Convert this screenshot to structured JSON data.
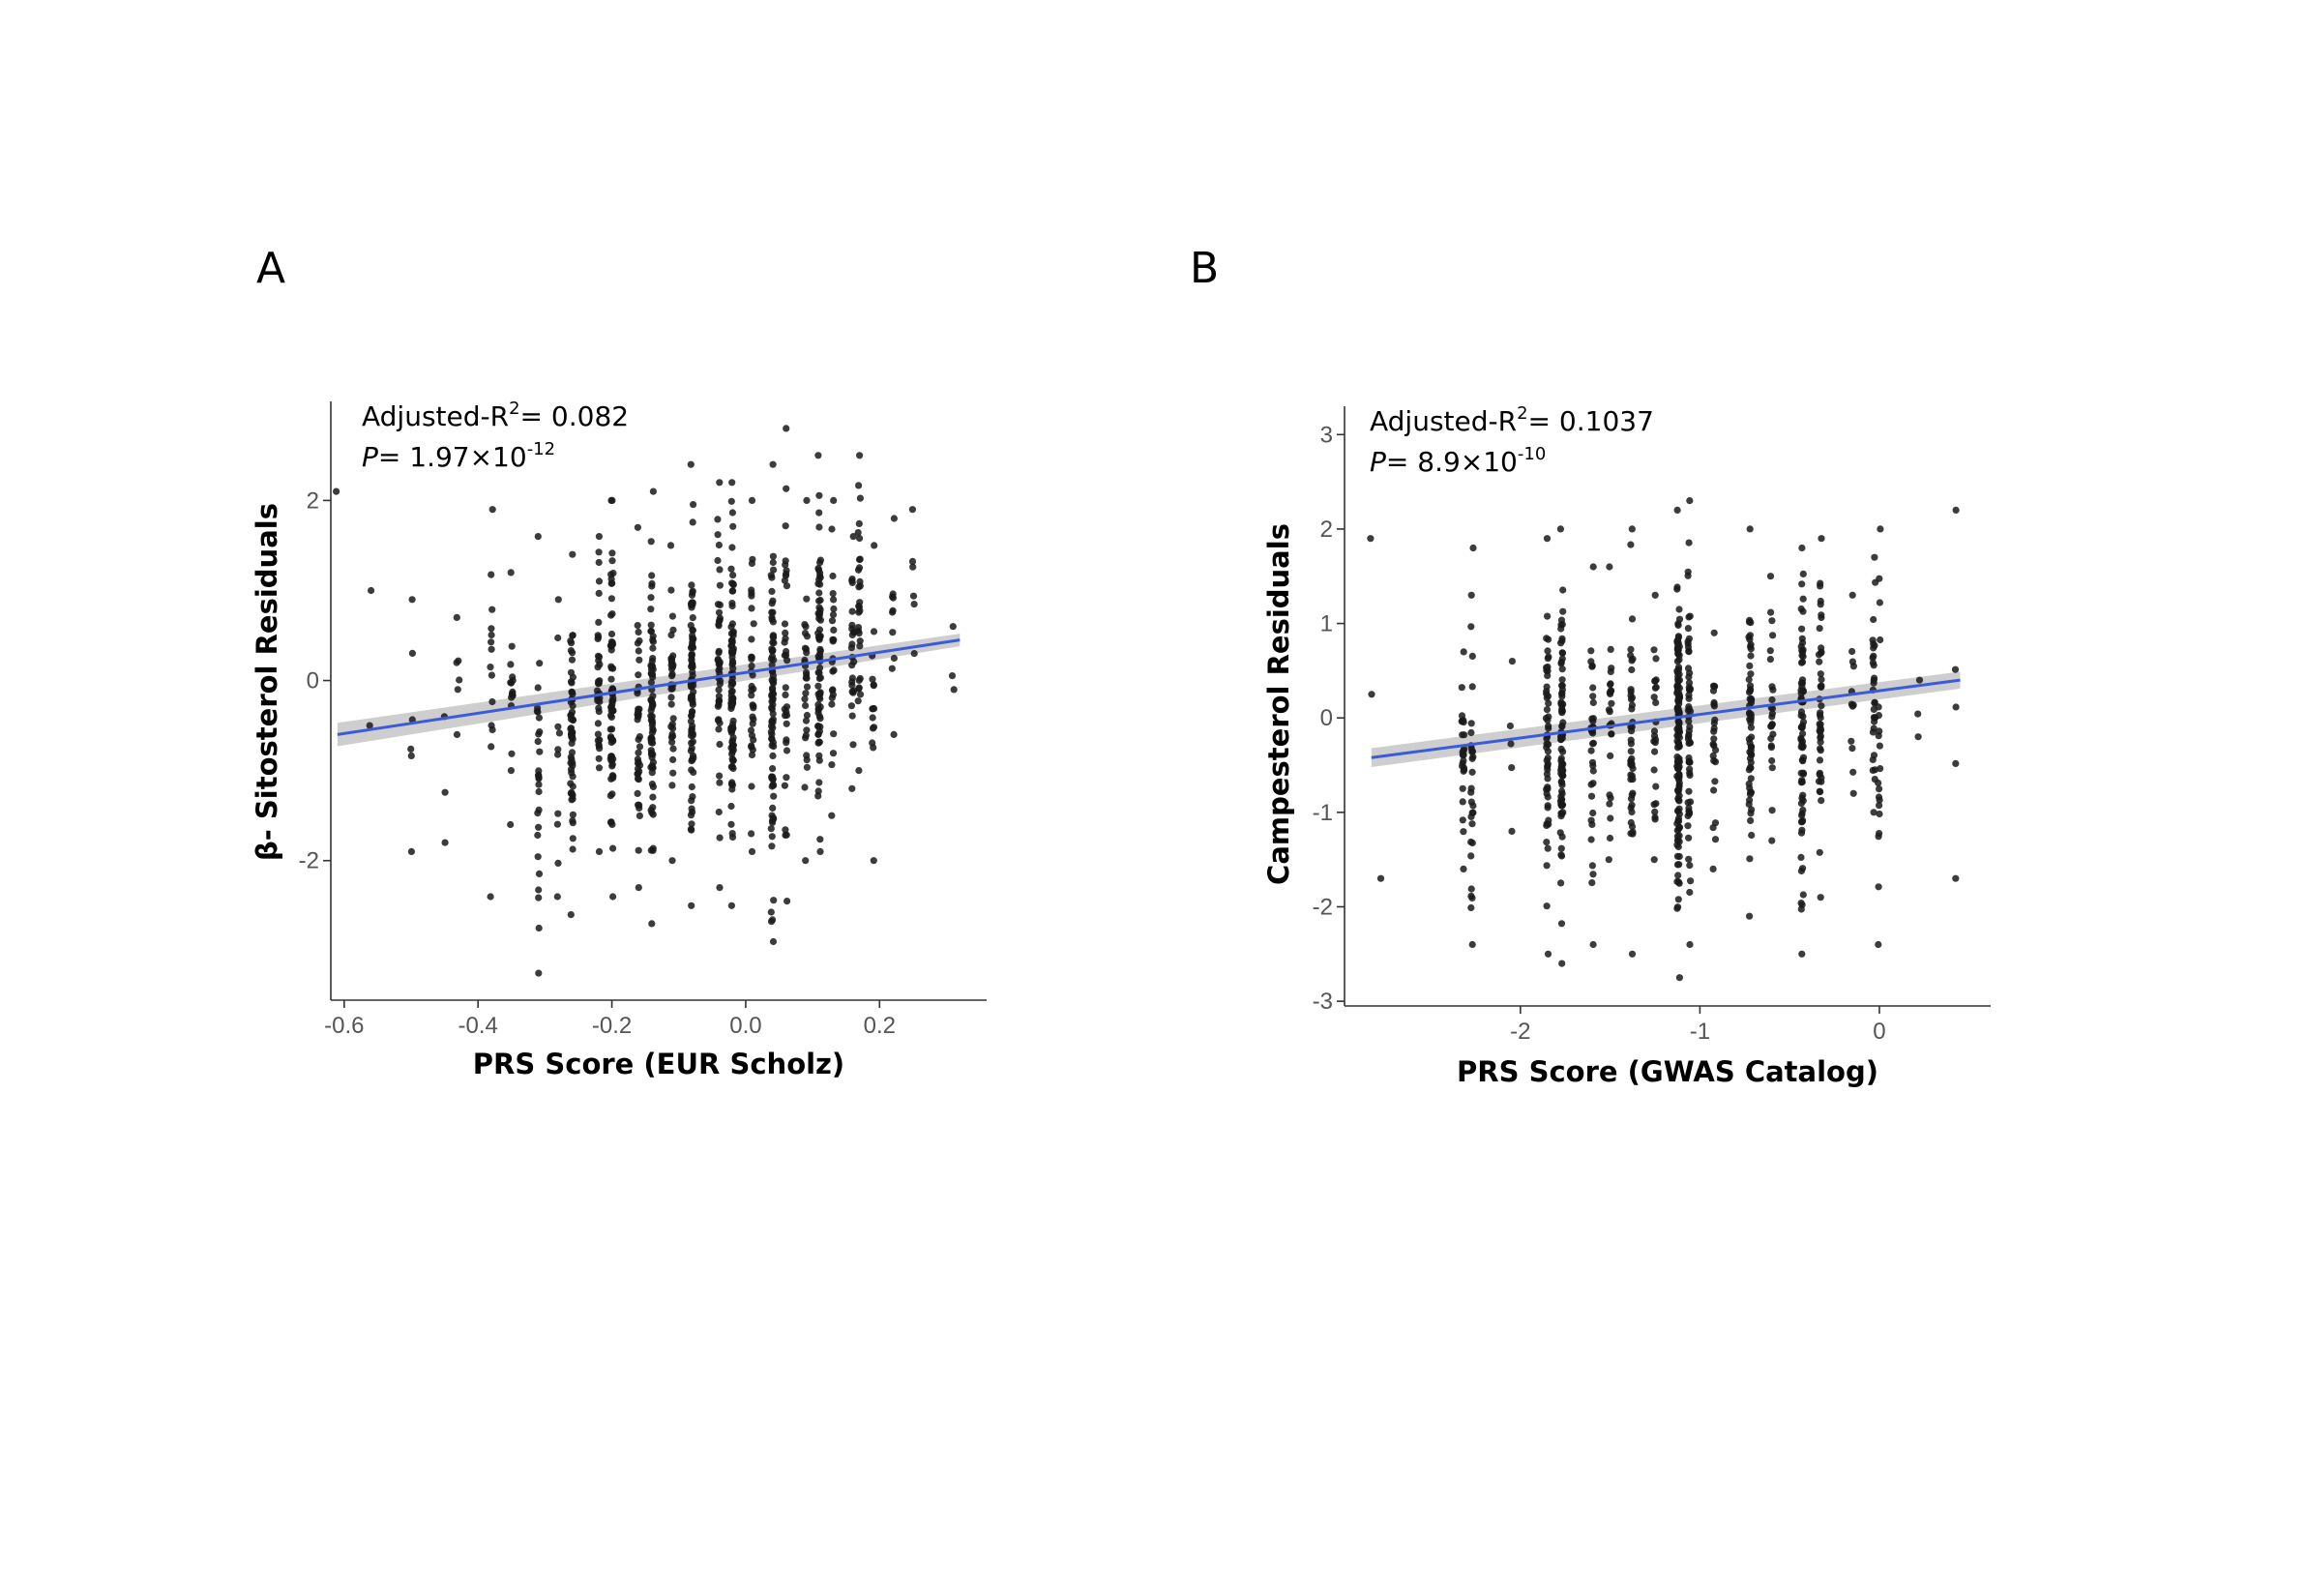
{
  "chart_data": [
    {
      "panel": "A",
      "type": "scatter",
      "xlabel": "PRS Score (EUR Scholz)",
      "ylabel": "β- Sitosterol Residuals",
      "xlim": [
        -0.62,
        0.36
      ],
      "ylim": [
        -3.55,
        3.1
      ],
      "xticks": [
        -0.6,
        -0.4,
        -0.2,
        0.0,
        0.2
      ],
      "xtick_labels": [
        "-0.6",
        "-0.4",
        "-0.2",
        "0.0",
        "0.2"
      ],
      "yticks": [
        -2,
        0,
        2
      ],
      "ytick_labels": [
        "-2",
        "0",
        "2"
      ],
      "grid": false,
      "annotation": {
        "r2_prefix": "Adjusted-R",
        "r2_sup": "2",
        "r2_value": "= 0.082",
        "p_label": "P",
        "p_value": "= 1.97×10",
        "p_exp": "-12"
      },
      "fit": {
        "x": [
          -0.61,
          0.32
        ],
        "y": [
          -0.6,
          0.45
        ],
        "ci_halfwidth": [
          0.13,
          0.07
        ]
      },
      "point_color": "#1a1a1a",
      "line_color": "#3b5bdb",
      "band_color": "#bdbdbd",
      "strips": [
        {
          "x": -0.61,
          "n": 1,
          "lo": 2.1,
          "hi": 2.1
        },
        {
          "x": -0.56,
          "n": 2,
          "lo": -0.5,
          "hi": 1.0
        },
        {
          "x": -0.5,
          "n": 6,
          "lo": -1.9,
          "hi": 0.9
        },
        {
          "x": -0.45,
          "n": 3,
          "lo": -1.8,
          "hi": -0.4
        },
        {
          "x": -0.43,
          "n": 6,
          "lo": -0.6,
          "hi": 0.7
        },
        {
          "x": -0.38,
          "n": 14,
          "lo": -2.4,
          "hi": 1.9
        },
        {
          "x": -0.35,
          "n": 16,
          "lo": -1.6,
          "hi": 1.2
        },
        {
          "x": -0.31,
          "n": 28,
          "lo": -3.25,
          "hi": 1.6
        },
        {
          "x": -0.28,
          "n": 10,
          "lo": -2.4,
          "hi": 0.9
        },
        {
          "x": -0.26,
          "n": 60,
          "lo": -2.6,
          "hi": 1.4
        },
        {
          "x": -0.22,
          "n": 38,
          "lo": -1.9,
          "hi": 1.6
        },
        {
          "x": -0.2,
          "n": 70,
          "lo": -2.4,
          "hi": 2.0
        },
        {
          "x": -0.16,
          "n": 40,
          "lo": -2.3,
          "hi": 1.7
        },
        {
          "x": -0.14,
          "n": 75,
          "lo": -2.7,
          "hi": 2.1
        },
        {
          "x": -0.11,
          "n": 35,
          "lo": -2.0,
          "hi": 1.5
        },
        {
          "x": -0.08,
          "n": 90,
          "lo": -2.5,
          "hi": 2.4
        },
        {
          "x": -0.04,
          "n": 45,
          "lo": -2.3,
          "hi": 2.2
        },
        {
          "x": -0.02,
          "n": 95,
          "lo": -2.5,
          "hi": 2.2
        },
        {
          "x": 0.01,
          "n": 35,
          "lo": -1.9,
          "hi": 2.0
        },
        {
          "x": 0.04,
          "n": 85,
          "lo": -2.9,
          "hi": 2.4
        },
        {
          "x": 0.06,
          "n": 35,
          "lo": -2.45,
          "hi": 2.8
        },
        {
          "x": 0.09,
          "n": 30,
          "lo": -2.0,
          "hi": 2.0
        },
        {
          "x": 0.11,
          "n": 75,
          "lo": -1.9,
          "hi": 2.5
        },
        {
          "x": 0.13,
          "n": 25,
          "lo": -1.5,
          "hi": 2.0
        },
        {
          "x": 0.16,
          "n": 25,
          "lo": -1.2,
          "hi": 1.6
        },
        {
          "x": 0.17,
          "n": 30,
          "lo": -1.0,
          "hi": 2.5
        },
        {
          "x": 0.19,
          "n": 15,
          "lo": -2.0,
          "hi": 1.5
        },
        {
          "x": 0.22,
          "n": 10,
          "lo": -0.6,
          "hi": 1.8
        },
        {
          "x": 0.25,
          "n": 6,
          "lo": 0.3,
          "hi": 1.9
        },
        {
          "x": 0.31,
          "n": 3,
          "lo": -0.1,
          "hi": 0.6
        }
      ]
    },
    {
      "panel": "B",
      "type": "scatter",
      "xlabel": "PRS Score (GWAS Catalog)",
      "ylabel": "Campesterol Residuals",
      "xlim": [
        -2.98,
        0.62
      ],
      "ylim": [
        -3.05,
        3.3
      ],
      "xticks": [
        -2,
        -1,
        0
      ],
      "xtick_labels": [
        "-2",
        "-1",
        "0"
      ],
      "yticks": [
        -3,
        -2,
        -1,
        0,
        1,
        2,
        3
      ],
      "ytick_labels": [
        "-3",
        "-2",
        "-1",
        "0",
        "1",
        "2",
        "3"
      ],
      "grid": false,
      "annotation": {
        "r2_prefix": "Adjusted-R",
        "r2_sup": "2",
        "r2_value": "= 0.1037",
        "p_label": "P",
        "p_value": "= 8.9×10",
        "p_exp": "-10"
      },
      "fit": {
        "x": [
          -2.83,
          0.45
        ],
        "y": [
          -0.42,
          0.4
        ],
        "ci_halfwidth": [
          0.1,
          0.09
        ]
      },
      "point_color": "#1a1a1a",
      "line_color": "#3b5bdb",
      "band_color": "#bdbdbd",
      "strips": [
        {
          "x": -2.83,
          "n": 2,
          "lo": 0.25,
          "hi": 1.9
        },
        {
          "x": -2.78,
          "n": 1,
          "lo": -1.7,
          "hi": -1.7
        },
        {
          "x": -2.32,
          "n": 25,
          "lo": -1.6,
          "hi": 0.7
        },
        {
          "x": -2.27,
          "n": 30,
          "lo": -2.4,
          "hi": 1.8
        },
        {
          "x": -2.05,
          "n": 5,
          "lo": -1.2,
          "hi": 0.6
        },
        {
          "x": -1.85,
          "n": 55,
          "lo": -2.5,
          "hi": 1.9
        },
        {
          "x": -1.77,
          "n": 85,
          "lo": -2.6,
          "hi": 2.0
        },
        {
          "x": -1.6,
          "n": 35,
          "lo": -2.4,
          "hi": 1.6
        },
        {
          "x": -1.5,
          "n": 25,
          "lo": -1.5,
          "hi": 1.6
        },
        {
          "x": -1.38,
          "n": 45,
          "lo": -2.5,
          "hi": 2.0
        },
        {
          "x": -1.25,
          "n": 25,
          "lo": -1.5,
          "hi": 1.3
        },
        {
          "x": -1.12,
          "n": 150,
          "lo": -2.75,
          "hi": 2.2
        },
        {
          "x": -1.06,
          "n": 60,
          "lo": -2.4,
          "hi": 2.3
        },
        {
          "x": -0.92,
          "n": 25,
          "lo": -1.6,
          "hi": 0.9
        },
        {
          "x": -0.72,
          "n": 60,
          "lo": -2.1,
          "hi": 2.0
        },
        {
          "x": -0.6,
          "n": 25,
          "lo": -1.3,
          "hi": 1.5
        },
        {
          "x": -0.43,
          "n": 75,
          "lo": -2.5,
          "hi": 1.8
        },
        {
          "x": -0.33,
          "n": 45,
          "lo": -1.9,
          "hi": 1.9
        },
        {
          "x": -0.15,
          "n": 12,
          "lo": -0.8,
          "hi": 1.3
        },
        {
          "x": -0.03,
          "n": 30,
          "lo": -1.0,
          "hi": 1.7
        },
        {
          "x": 0.0,
          "n": 20,
          "lo": -2.4,
          "hi": 2.0
        },
        {
          "x": 0.22,
          "n": 3,
          "lo": -0.2,
          "hi": 0.4
        },
        {
          "x": 0.43,
          "n": 5,
          "lo": -1.7,
          "hi": 2.2
        }
      ]
    }
  ]
}
